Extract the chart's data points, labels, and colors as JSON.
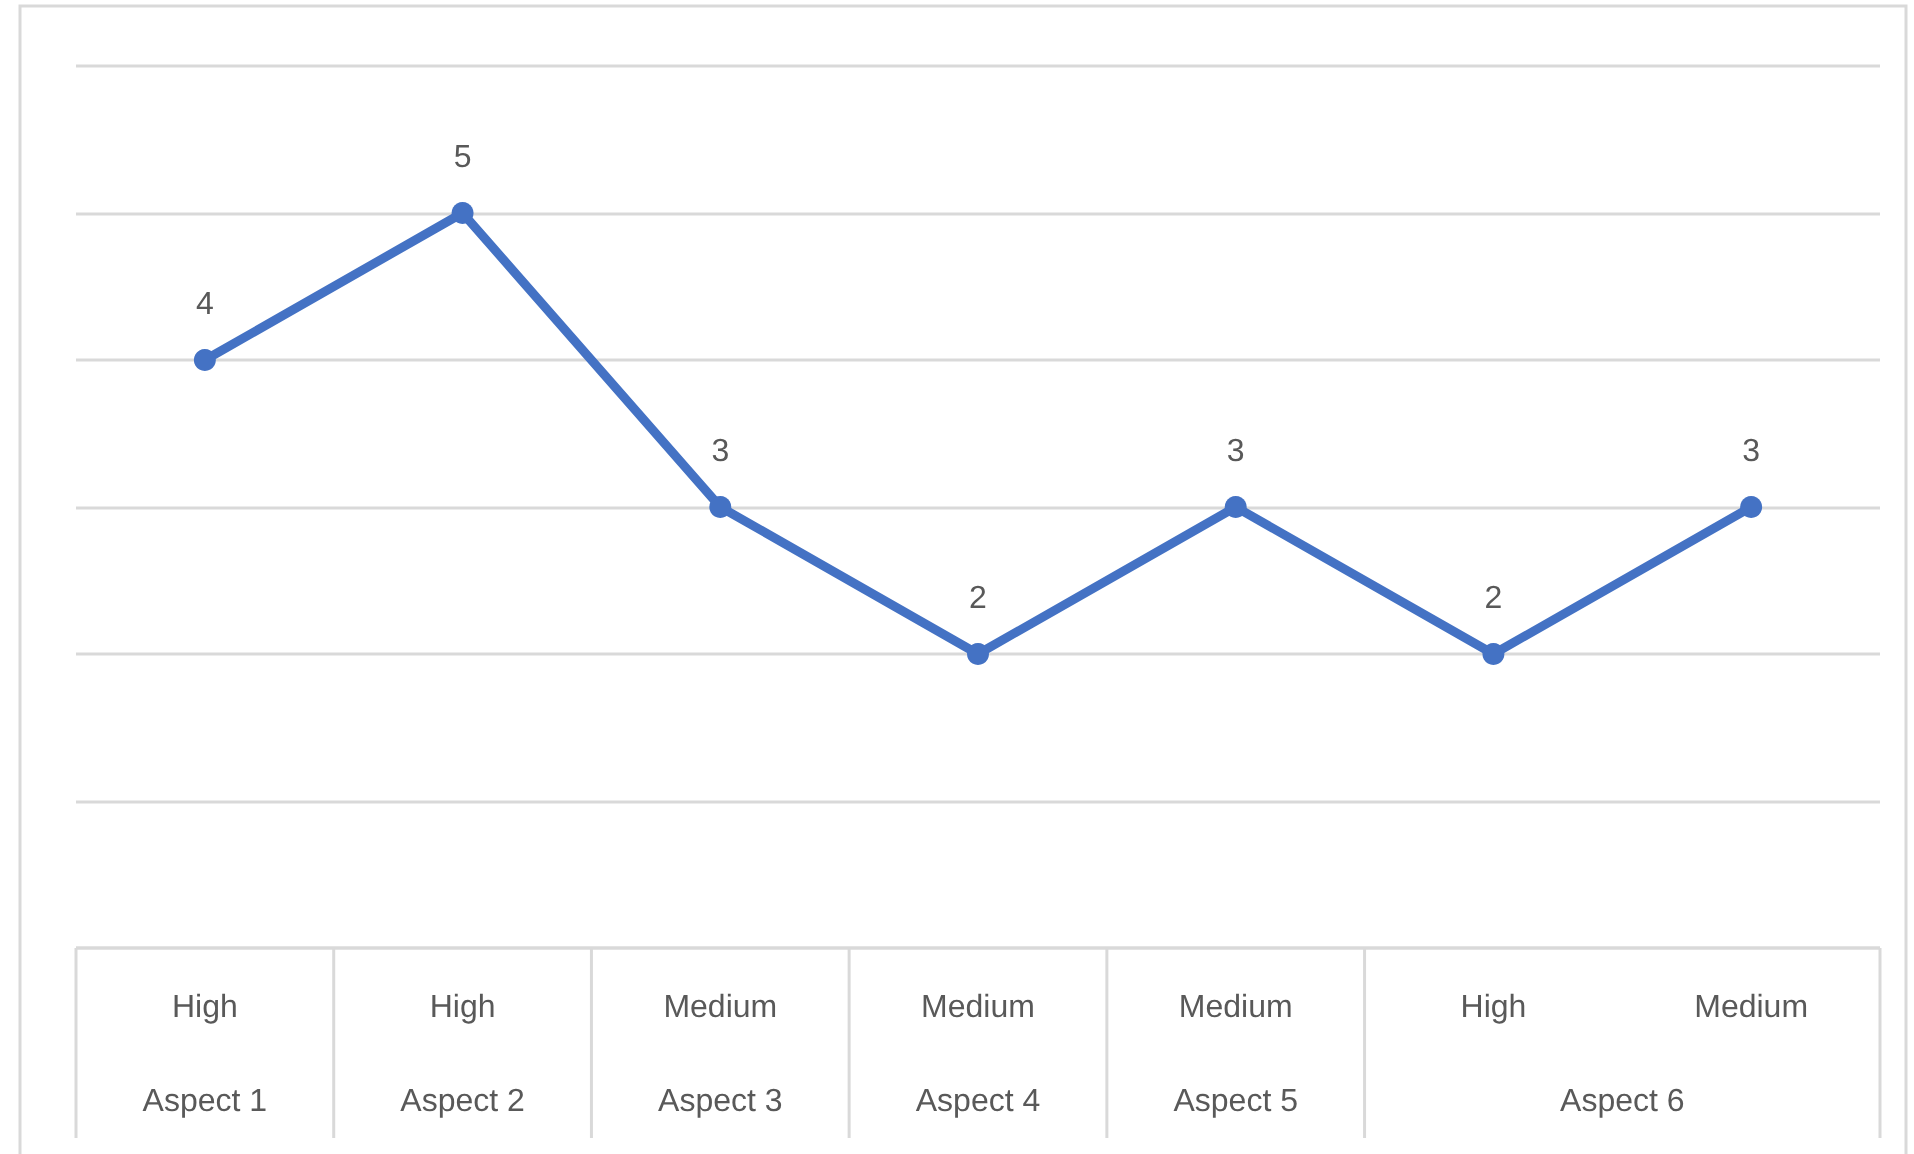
{
  "chart_data": {
    "type": "line",
    "categories": [
      "High",
      "High",
      "Medium",
      "Medium",
      "Medium",
      "High",
      "Medium"
    ],
    "values": [
      4,
      5,
      3,
      2,
      3,
      2,
      3
    ],
    "color": "#4472c4",
    "ylim": [
      0,
      6
    ],
    "yticks": [
      {
        "value": 0,
        "label": null
      },
      {
        "value": 1,
        "label": null
      },
      {
        "value": 2,
        "label": null
      },
      {
        "value": 3,
        "label": null
      },
      {
        "value": 4,
        "label": null
      },
      {
        "value": 5,
        "label": null
      },
      {
        "value": 6,
        "label": null
      }
    ],
    "tick_labels": "x",
    "grid": "y",
    "marker": "circle",
    "line_style": "solid",
    "data_labels": true,
    "annotations": [
      "Aspect 1",
      "Aspect 2",
      "Aspect 3",
      "Aspect 4",
      "Aspect 5",
      "Aspect 6"
    ]
  }
}
